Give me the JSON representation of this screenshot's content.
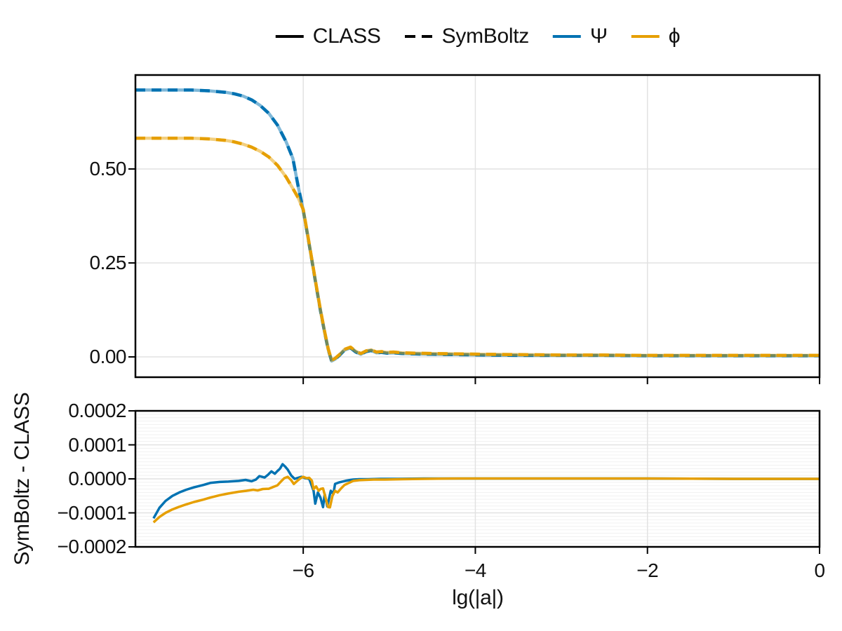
{
  "legend": {
    "items": [
      {
        "label": "CLASS",
        "color": "#000000",
        "line": "solid"
      },
      {
        "label": "SymBoltz",
        "color": "#000000",
        "line": "dashed"
      },
      {
        "label": "Ψ",
        "color": "#0072B2",
        "line": "solid"
      },
      {
        "label": "ϕ",
        "color": "#E69F00",
        "line": "solid"
      }
    ]
  },
  "axes": {
    "xlabel": "lg(|a|)",
    "residual_ylabel": "SymBoltz - CLASS"
  },
  "colors": {
    "psi": "#0072B2",
    "phi": "#E69F00",
    "spine": "#000000",
    "grid_major": "#e2e2e2",
    "grid_minor": "#f1f1f1",
    "text": "#111111",
    "background": "#ffffff"
  },
  "chart_data": [
    {
      "id": "potentials",
      "type": "line",
      "title": "",
      "xlabel": "",
      "ylabel": "",
      "x_range": [
        -7.95,
        0
      ],
      "y_range": [
        -0.054,
        0.75
      ],
      "x_gridlines": [
        -6,
        -4,
        -2
      ],
      "x_ticks": [
        -6,
        -4,
        -2,
        0
      ],
      "show_x_tick_labels": false,
      "x_tick_labels": [],
      "y_ticks": [
        0,
        0.25,
        0.5
      ],
      "y_tick_labels": [
        "0.00",
        "0.25",
        "0.50"
      ],
      "grid": true,
      "legend_position": "top-center",
      "line_width": 4.5,
      "line_styles": [
        {
          "solver": "CLASS",
          "dash": "solid",
          "opacity": 0.5
        },
        {
          "solver": "SymBoltz",
          "dash": "dashed",
          "opacity": 1.0
        }
      ],
      "series": [
        {
          "name": "Ψ",
          "color": "#0072B2",
          "x": [
            -7.95,
            -7.6,
            -7.3,
            -7.1,
            -6.9,
            -6.8,
            -6.7,
            -6.6,
            -6.5,
            -6.4,
            -6.3,
            -6.2,
            -6.12,
            -6.06,
            -6.0,
            -5.95,
            -5.9,
            -5.85,
            -5.8,
            -5.75,
            -5.71,
            -5.67,
            -5.63,
            -5.58,
            -5.52,
            -5.45,
            -5.39,
            -5.33,
            -5.27,
            -5.21,
            -5.15,
            -5.09,
            -5.03,
            -4.95,
            -4.85,
            -4.7,
            -4.5,
            -4.2,
            -3.9,
            -3.5,
            -3.0,
            -2.5,
            -2.0,
            -1.5,
            -1.0,
            -0.5,
            0.0
          ],
          "y": [
            0.71,
            0.71,
            0.71,
            0.708,
            0.704,
            0.7,
            0.694,
            0.684,
            0.669,
            0.648,
            0.617,
            0.573,
            0.528,
            0.455,
            0.39,
            0.325,
            0.258,
            0.19,
            0.123,
            0.064,
            0.02,
            -0.011,
            -0.006,
            0.004,
            0.018,
            0.024,
            0.013,
            0.007,
            0.014,
            0.017,
            0.011,
            0.012,
            0.01,
            0.011,
            0.009,
            0.008,
            0.007,
            0.006,
            0.005,
            0.004,
            0.004,
            0.004,
            0.003,
            0.003,
            0.003,
            0.003,
            0.003
          ]
        },
        {
          "name": "ϕ",
          "color": "#E69F00",
          "x": [
            -7.95,
            -7.6,
            -7.3,
            -7.1,
            -6.9,
            -6.8,
            -6.7,
            -6.6,
            -6.5,
            -6.4,
            -6.3,
            -6.2,
            -6.12,
            -6.06,
            -6.0,
            -5.95,
            -5.9,
            -5.85,
            -5.8,
            -5.75,
            -5.71,
            -5.67,
            -5.63,
            -5.58,
            -5.52,
            -5.45,
            -5.39,
            -5.33,
            -5.27,
            -5.21,
            -5.15,
            -5.09,
            -5.03,
            -4.95,
            -4.85,
            -4.7,
            -4.5,
            -4.2,
            -3.9,
            -3.5,
            -3.0,
            -2.5,
            -2.0,
            -1.5,
            -1.0,
            -0.5,
            0.0
          ],
          "y": [
            0.582,
            0.582,
            0.582,
            0.58,
            0.576,
            0.572,
            0.566,
            0.558,
            0.547,
            0.532,
            0.51,
            0.479,
            0.448,
            0.424,
            0.392,
            0.327,
            0.26,
            0.192,
            0.125,
            0.066,
            0.022,
            -0.009,
            -0.004,
            0.006,
            0.02,
            0.026,
            0.015,
            0.009,
            0.016,
            0.019,
            0.013,
            0.014,
            0.012,
            0.013,
            0.011,
            0.01,
            0.009,
            0.008,
            0.007,
            0.006,
            0.005,
            0.005,
            0.004,
            0.004,
            0.004,
            0.004,
            0.004
          ]
        }
      ]
    },
    {
      "id": "residuals",
      "type": "line",
      "title": "",
      "xlabel": "lg(|a|)",
      "ylabel": "SymBoltz - CLASS",
      "x_range": [
        -7.95,
        0
      ],
      "y_range": [
        -0.0002,
        0.0002
      ],
      "x_gridlines": [
        -6,
        -4,
        -2
      ],
      "x_ticks": [
        -6,
        -4,
        -2,
        0
      ],
      "show_x_tick_labels": true,
      "x_tick_labels": [
        "−6",
        "−4",
        "−2",
        "0"
      ],
      "y_ticks": [
        -0.0002,
        -0.0001,
        0,
        0.0001,
        0.0002
      ],
      "y_tick_labels": [
        "−0.0002",
        "−0.0001",
        "0.0000",
        "0.0001",
        "0.0002"
      ],
      "y_minor_step": 1e-05,
      "grid": true,
      "line_width": 3.5,
      "line_styles": [
        {
          "solver": "SymBoltz − CLASS",
          "dash": "solid",
          "opacity": 1.0
        }
      ],
      "series": [
        {
          "name": "Ψ",
          "color": "#0072B2",
          "x": [
            -7.74,
            -7.67,
            -7.6,
            -7.52,
            -7.44,
            -7.36,
            -7.27,
            -7.16,
            -7.08,
            -6.97,
            -6.87,
            -6.75,
            -6.67,
            -6.6,
            -6.55,
            -6.51,
            -6.45,
            -6.41,
            -6.37,
            -6.33,
            -6.3,
            -6.27,
            -6.24,
            -6.21,
            -6.18,
            -6.14,
            -6.1,
            -6.06,
            -6.02,
            -5.98,
            -5.93,
            -5.91,
            -5.88,
            -5.86,
            -5.83,
            -5.8,
            -5.77,
            -5.75,
            -5.72,
            -5.68,
            -5.65,
            -5.63,
            -5.58,
            -5.51,
            -5.45,
            -5.42,
            -5.35,
            -5.25,
            -5.1,
            -4.9,
            -4.6,
            -4.2,
            -3.6,
            -3.0,
            -2.0,
            -1.0,
            0.0
          ],
          "y": [
            -0.000116,
            -8.5e-05,
            -6.5e-05,
            -5e-05,
            -4e-05,
            -3.2e-05,
            -2.5e-05,
            -1.8e-05,
            -1.2e-05,
            -9e-06,
            -8e-06,
            -6e-06,
            -3e-06,
            -7e-06,
            -2e-06,
            8e-06,
            4e-06,
            1.2e-05,
            2.2e-05,
            1.5e-05,
            2.3e-05,
            3e-05,
            4.3e-05,
            3.6e-05,
            2.7e-05,
            1e-05,
            0.0,
            3e-06,
            6e-06,
            2e-06,
            0.0,
            -1.4e-05,
            -3.5e-05,
            -7.3e-05,
            -4e-05,
            -5.5e-05,
            -8.3e-05,
            -4.5e-05,
            -8.1e-05,
            -3.5e-05,
            -4.5e-05,
            -1.5e-05,
            -1e-05,
            -6e-06,
            -3e-06,
            -2e-06,
            -1e-06,
            -1e-06,
            0.0,
            0.0,
            1e-06,
            1e-06,
            1e-06,
            1e-06,
            1e-06,
            0.0,
            0.0
          ]
        },
        {
          "name": "ϕ",
          "color": "#E69F00",
          "x": [
            -7.74,
            -7.67,
            -7.6,
            -7.52,
            -7.44,
            -7.36,
            -7.27,
            -7.16,
            -7.08,
            -6.97,
            -6.87,
            -6.75,
            -6.66,
            -6.58,
            -6.53,
            -6.47,
            -6.4,
            -6.35,
            -6.3,
            -6.26,
            -6.22,
            -6.18,
            -6.14,
            -6.11,
            -6.07,
            -6.03,
            -6.0,
            -5.96,
            -5.93,
            -5.9,
            -5.88,
            -5.85,
            -5.82,
            -5.8,
            -5.77,
            -5.74,
            -5.71,
            -5.69,
            -5.66,
            -5.63,
            -5.6,
            -5.56,
            -5.52,
            -5.47,
            -5.42,
            -5.35,
            -5.28,
            -5.18,
            -5.05,
            -4.85,
            -4.6,
            -4.2,
            -3.6,
            -3.0,
            -2.0,
            -1.0,
            0.0
          ],
          "y": [
            -0.000128,
            -0.000112,
            -0.0001,
            -9e-05,
            -8.2e-05,
            -7.5e-05,
            -6.8e-05,
            -6.1e-05,
            -5.5e-05,
            -4.8e-05,
            -4.3e-05,
            -3.8e-05,
            -3.5e-05,
            -3.2e-05,
            -3.4e-05,
            -3e-05,
            -2.9e-05,
            -2.4e-05,
            -1.9e-05,
            -8e-06,
            2e-06,
            6e-06,
            -4e-06,
            -1.5e-05,
            -6e-06,
            2e-06,
            6e-06,
            2e-06,
            3e-06,
            -5e-06,
            -3e-05,
            -2.2e-05,
            -3.5e-05,
            -3e-05,
            -2.8e-05,
            -5.6e-05,
            -8.3e-05,
            -8.4e-05,
            -5e-05,
            -3.5e-05,
            -4e-05,
            -2.8e-05,
            -1.8e-05,
            -1.2e-05,
            -6e-06,
            -4e-06,
            -3e-06,
            -2e-06,
            -2e-06,
            -1e-06,
            0.0,
            1e-06,
            1e-06,
            1e-06,
            1e-06,
            0.0,
            0.0
          ]
        }
      ]
    }
  ]
}
